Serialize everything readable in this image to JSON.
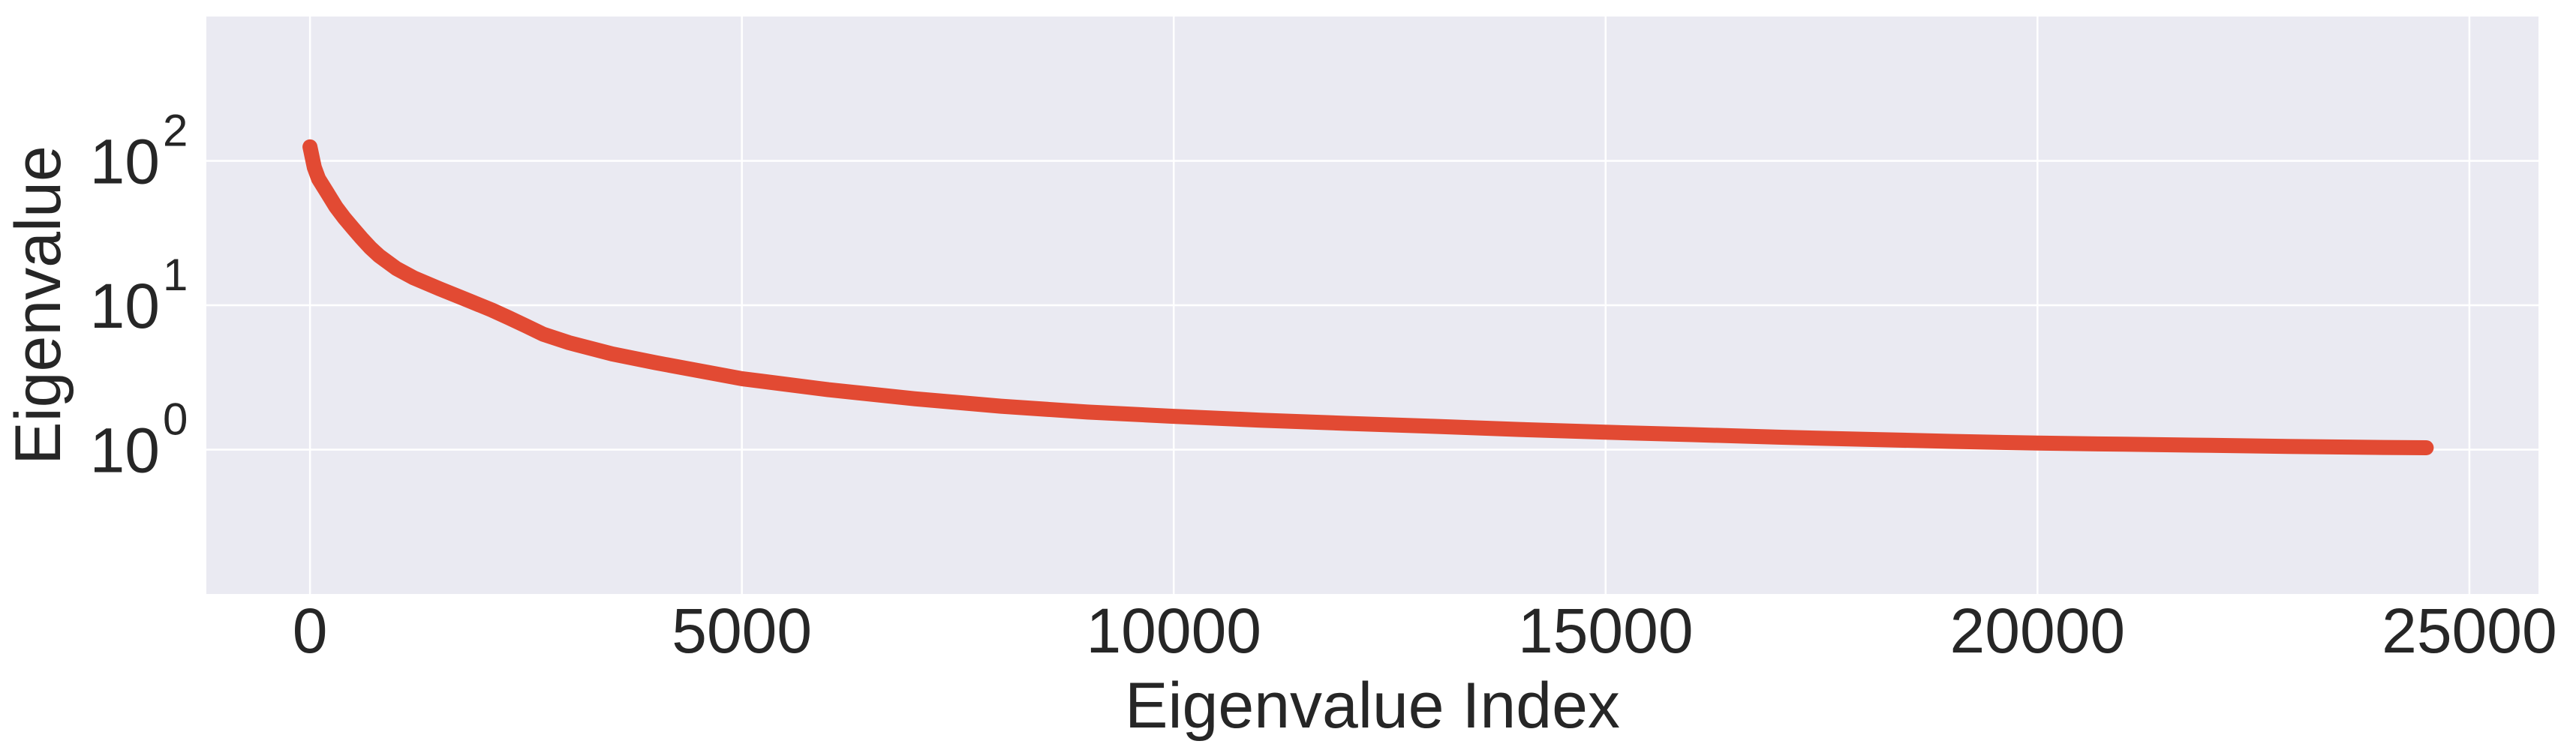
{
  "chart_data": {
    "type": "line",
    "title": "",
    "xlabel": "Eigenvalue Index",
    "ylabel": "Eigenvalue",
    "xlim": [
      -1200,
      25800
    ],
    "ylim": [
      0.1,
      1000
    ],
    "yscale": "log",
    "grid": true,
    "legend": "none",
    "x_ticks": [
      0,
      5000,
      10000,
      15000,
      20000,
      25000
    ],
    "x_tick_labels": [
      "0",
      "5000",
      "10000",
      "15000",
      "20000",
      "25000"
    ],
    "y_ticks": [
      1,
      10,
      100
    ],
    "y_tick_labels": [
      {
        "base": "10",
        "exp": "0"
      },
      {
        "base": "10",
        "exp": "1"
      },
      {
        "base": "10",
        "exp": "2"
      }
    ],
    "series": [
      {
        "color": "#e24a33",
        "x": [
          0,
          50,
          100,
          200,
          300,
          400,
          500,
          600,
          700,
          800,
          1000,
          1200,
          1500,
          1800,
          2100,
          2300,
          2500,
          2700,
          3000,
          3500,
          4000,
          5000,
          6000,
          7000,
          8000,
          9000,
          10000,
          11000,
          12000,
          13000,
          14000,
          15000,
          16000,
          17000,
          18000,
          19000,
          20000,
          21000,
          22000,
          23000,
          24000,
          24500
        ],
        "y": [
          125,
          90,
          75,
          60,
          48,
          40,
          34,
          29,
          25,
          22,
          18,
          15.5,
          13,
          11,
          9.3,
          8.2,
          7.2,
          6.3,
          5.5,
          4.6,
          4.0,
          3.1,
          2.6,
          2.25,
          2.0,
          1.82,
          1.7,
          1.6,
          1.52,
          1.45,
          1.38,
          1.32,
          1.27,
          1.22,
          1.18,
          1.14,
          1.11,
          1.09,
          1.07,
          1.05,
          1.035,
          1.03
        ]
      }
    ]
  },
  "colors": {
    "plot_background": "#eaeaf2",
    "grid": "#ffffff",
    "text": "#262626"
  }
}
